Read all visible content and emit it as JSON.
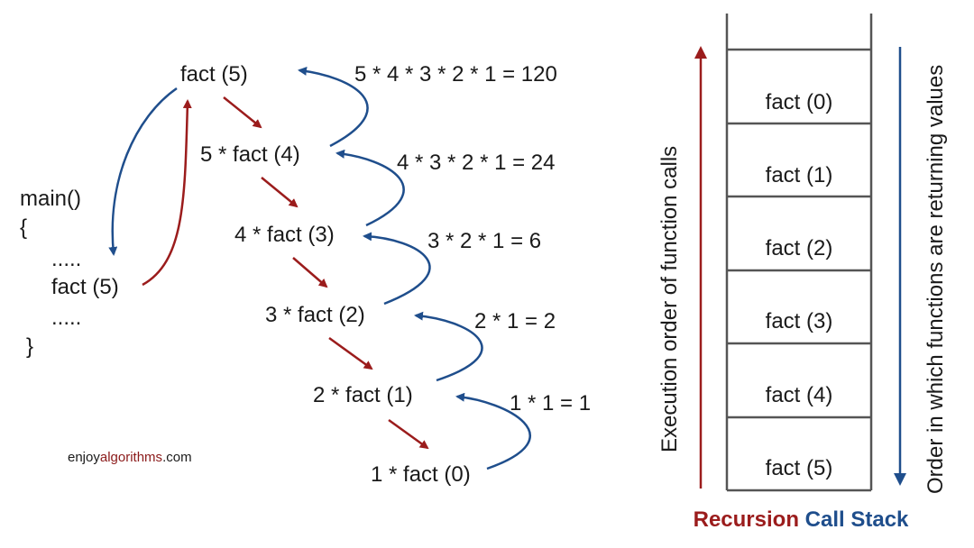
{
  "colors": {
    "call_arrow": "#9b1c1c",
    "return_arrow": "#1f4e8c",
    "text": "#1a1a1a",
    "stack_border": "#555555"
  },
  "code": {
    "line1": "main()",
    "line2": "{",
    "line3": ".....",
    "line4": "fact (5)",
    "line5": ".....",
    "line6": "}"
  },
  "calls": [
    "fact (5)",
    "5 * fact (4)",
    "4 * fact (3)",
    "3 * fact (2)",
    "2 * fact (1)",
    "1 * fact (0)"
  ],
  "returns": [
    "5 * 4 * 3 * 2 * 1 = 120",
    "4 * 3 * 2 * 1 = 24",
    "3 * 2 * 1 = 6",
    "2 * 1 = 2",
    "1 * 1 = 1"
  ],
  "watermark": {
    "prefix": "enjoy",
    "highlight": "algorithms",
    "suffix": ".com"
  },
  "stack": {
    "frames": [
      "fact (0)",
      "fact (1)",
      "fact (2)",
      "fact (3)",
      "fact (4)",
      "fact (5)"
    ],
    "left_label": "Execution order of function calls",
    "right_label": "Order in which functions are returning values",
    "title_part1": "Recursion",
    "title_part2": "Call Stack"
  }
}
